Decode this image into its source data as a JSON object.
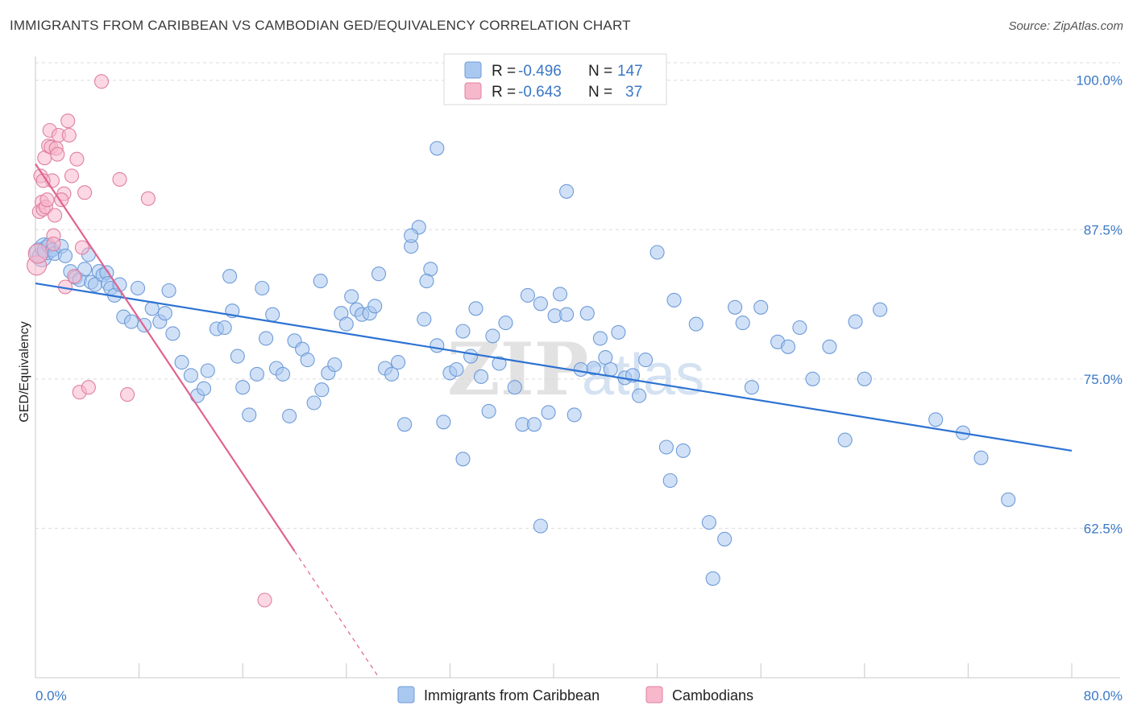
{
  "header": {
    "title": "IMMIGRANTS FROM CARIBBEAN VS CAMBODIAN GED/EQUIVALENCY CORRELATION CHART",
    "source": "Source: ZipAtlas.com"
  },
  "watermark": "ZIPatlas",
  "legend_top": [
    {
      "r_label": "R = ",
      "r_value": "-0.496",
      "n_label": "N = ",
      "n_value": "147",
      "color": "#a9c8f0",
      "stroke": "#6f9bd8"
    },
    {
      "r_label": "R = ",
      "r_value": "-0.643",
      "n_label": "N = ",
      "n_value": "37",
      "color": "#f7b8cc",
      "stroke": "#e07fa0"
    }
  ],
  "legend_bottom": [
    {
      "label": "Immigrants from Caribbean",
      "color": "#a9c8f0",
      "stroke": "#6f9bd8"
    },
    {
      "label": "Cambodians",
      "color": "#f7b8cc",
      "stroke": "#e07fa0"
    }
  ],
  "chart_data": {
    "type": "scatter",
    "title": "IMMIGRANTS FROM CARIBBEAN VS CAMBODIAN GED/EQUIVALENCY CORRELATION CHART",
    "xlabel": "",
    "ylabel": "GED/Equivalency",
    "xlim": [
      0,
      80
    ],
    "ylim": [
      50,
      102
    ],
    "x_tick_labels": [
      "0.0%",
      "80.0%"
    ],
    "y_ticks": [
      62.5,
      75.0,
      87.5,
      100.0
    ],
    "y_tick_labels": [
      "62.5%",
      "75.0%",
      "87.5%",
      "100.0%"
    ],
    "grid": true,
    "series": [
      {
        "name": "Immigrants from Caribbean",
        "color": "#6f9bd8",
        "fill": "#a9c8f0",
        "trend": {
          "x0": 0,
          "y0": 83.0,
          "x1": 80,
          "y1": 69.0
        },
        "points": [
          [
            0.3,
            85.6
          ],
          [
            0.5,
            85.2
          ],
          [
            0.7,
            86.0
          ],
          [
            0.9,
            85.8
          ],
          [
            1.0,
            86.2
          ],
          [
            1.3,
            85.8
          ],
          [
            1.5,
            85.5
          ],
          [
            2.0,
            86.1
          ],
          [
            2.3,
            85.3
          ],
          [
            2.7,
            84.0
          ],
          [
            3.1,
            83.5
          ],
          [
            3.4,
            83.3
          ],
          [
            3.8,
            84.2
          ],
          [
            4.1,
            85.4
          ],
          [
            4.3,
            83.1
          ],
          [
            4.6,
            82.9
          ],
          [
            4.9,
            84.0
          ],
          [
            5.2,
            83.7
          ],
          [
            5.5,
            83.9
          ],
          [
            5.6,
            83.0
          ],
          [
            5.8,
            82.6
          ],
          [
            6.1,
            82.0
          ],
          [
            6.5,
            82.9
          ],
          [
            6.8,
            80.2
          ],
          [
            7.4,
            79.8
          ],
          [
            7.9,
            82.6
          ],
          [
            8.4,
            79.5
          ],
          [
            9.0,
            80.9
          ],
          [
            9.6,
            79.8
          ],
          [
            10.0,
            80.5
          ],
          [
            10.6,
            78.8
          ],
          [
            11.3,
            76.4
          ],
          [
            12.0,
            75.3
          ],
          [
            12.5,
            73.6
          ],
          [
            13.0,
            74.2
          ],
          [
            13.3,
            75.7
          ],
          [
            14.0,
            79.2
          ],
          [
            14.6,
            79.3
          ],
          [
            15.2,
            80.7
          ],
          [
            15.6,
            76.9
          ],
          [
            16.0,
            74.3
          ],
          [
            16.5,
            72.0
          ],
          [
            17.1,
            75.4
          ],
          [
            17.8,
            78.4
          ],
          [
            18.3,
            80.4
          ],
          [
            18.6,
            75.9
          ],
          [
            19.1,
            75.4
          ],
          [
            19.6,
            71.9
          ],
          [
            20.0,
            78.2
          ],
          [
            20.6,
            77.5
          ],
          [
            21.0,
            76.6
          ],
          [
            21.5,
            73.0
          ],
          [
            22.1,
            74.1
          ],
          [
            22.6,
            75.5
          ],
          [
            23.1,
            76.2
          ],
          [
            23.6,
            80.5
          ],
          [
            24.0,
            79.6
          ],
          [
            24.4,
            81.9
          ],
          [
            24.8,
            80.8
          ],
          [
            25.2,
            80.4
          ],
          [
            25.8,
            80.5
          ],
          [
            26.2,
            81.1
          ],
          [
            27.0,
            75.9
          ],
          [
            27.5,
            75.4
          ],
          [
            28.0,
            76.4
          ],
          [
            28.5,
            71.2
          ],
          [
            29.0,
            86.1
          ],
          [
            29.6,
            87.7
          ],
          [
            30.0,
            80.0
          ],
          [
            30.5,
            84.2
          ],
          [
            31.0,
            77.8
          ],
          [
            31.5,
            71.4
          ],
          [
            32.0,
            75.5
          ],
          [
            32.5,
            75.8
          ],
          [
            33.0,
            79.0
          ],
          [
            33.6,
            76.9
          ],
          [
            34.0,
            80.9
          ],
          [
            34.4,
            75.2
          ],
          [
            35.0,
            72.3
          ],
          [
            35.3,
            78.6
          ],
          [
            35.8,
            76.3
          ],
          [
            36.3,
            79.7
          ],
          [
            37.0,
            74.3
          ],
          [
            37.6,
            71.2
          ],
          [
            38.0,
            82.0
          ],
          [
            38.5,
            71.2
          ],
          [
            39.0,
            81.3
          ],
          [
            39.6,
            72.2
          ],
          [
            40.1,
            80.3
          ],
          [
            40.5,
            82.1
          ],
          [
            41.0,
            80.4
          ],
          [
            41.6,
            72.0
          ],
          [
            42.1,
            75.8
          ],
          [
            42.6,
            80.5
          ],
          [
            43.1,
            75.9
          ],
          [
            43.6,
            78.4
          ],
          [
            44.0,
            76.8
          ],
          [
            44.4,
            75.8
          ],
          [
            45.0,
            78.9
          ],
          [
            45.5,
            75.1
          ],
          [
            46.1,
            75.3
          ],
          [
            46.6,
            73.6
          ],
          [
            47.1,
            76.6
          ],
          [
            48.0,
            85.6
          ],
          [
            48.7,
            69.3
          ],
          [
            49.3,
            81.6
          ],
          [
            50.0,
            69.0
          ],
          [
            51.0,
            79.6
          ],
          [
            52.0,
            63.0
          ],
          [
            53.2,
            61.6
          ],
          [
            54.0,
            81.0
          ],
          [
            54.6,
            79.7
          ],
          [
            55.3,
            74.3
          ],
          [
            56.0,
            81.0
          ],
          [
            57.3,
            78.1
          ],
          [
            58.1,
            77.7
          ],
          [
            59.0,
            79.3
          ],
          [
            60.0,
            75.0
          ],
          [
            61.3,
            77.7
          ],
          [
            62.5,
            69.9
          ],
          [
            63.3,
            79.8
          ],
          [
            64.0,
            75.0
          ],
          [
            65.2,
            80.8
          ],
          [
            69.5,
            71.6
          ],
          [
            71.6,
            70.5
          ],
          [
            73.0,
            68.4
          ],
          [
            75.1,
            64.9
          ],
          [
            39.0,
            62.7
          ],
          [
            31.0,
            94.3
          ],
          [
            41.0,
            90.7
          ],
          [
            49.0,
            66.5
          ],
          [
            52.3,
            58.3
          ],
          [
            33.0,
            68.3
          ],
          [
            22.0,
            83.2
          ],
          [
            26.5,
            83.8
          ],
          [
            29.0,
            87.0
          ],
          [
            30.2,
            83.2
          ],
          [
            17.5,
            82.6
          ],
          [
            15.0,
            83.6
          ],
          [
            10.3,
            82.4
          ]
        ]
      },
      {
        "name": "Cambodians",
        "color": "#e07fa0",
        "fill": "#f7b8cc",
        "trend": {
          "x0": 0,
          "y0": 93.0,
          "x1": 20,
          "y1": 60.6,
          "dash_to_x": 26.4,
          "dash_to_y": 50.2
        },
        "points": [
          [
            0.1,
            84.5
          ],
          [
            0.2,
            85.5
          ],
          [
            0.3,
            89.0
          ],
          [
            0.4,
            92.0
          ],
          [
            0.5,
            89.8
          ],
          [
            0.6,
            89.2
          ],
          [
            0.7,
            93.5
          ],
          [
            0.8,
            89.4
          ],
          [
            0.9,
            90.0
          ],
          [
            1.0,
            94.5
          ],
          [
            1.1,
            95.8
          ],
          [
            1.2,
            94.4
          ],
          [
            1.3,
            91.6
          ],
          [
            1.4,
            87.0
          ],
          [
            1.5,
            88.7
          ],
          [
            1.6,
            94.3
          ],
          [
            1.7,
            93.8
          ],
          [
            1.8,
            95.4
          ],
          [
            2.2,
            90.5
          ],
          [
            2.3,
            82.7
          ],
          [
            2.5,
            96.6
          ],
          [
            2.6,
            95.4
          ],
          [
            2.8,
            92.0
          ],
          [
            3.0,
            83.6
          ],
          [
            3.2,
            93.4
          ],
          [
            3.4,
            73.9
          ],
          [
            3.6,
            86.0
          ],
          [
            3.8,
            90.6
          ],
          [
            4.1,
            74.3
          ],
          [
            5.1,
            99.9
          ],
          [
            6.5,
            91.7
          ],
          [
            7.1,
            73.7
          ],
          [
            8.7,
            90.1
          ],
          [
            17.7,
            56.5
          ],
          [
            0.6,
            91.6
          ],
          [
            1.4,
            86.3
          ],
          [
            2.0,
            90.0
          ]
        ]
      }
    ]
  }
}
